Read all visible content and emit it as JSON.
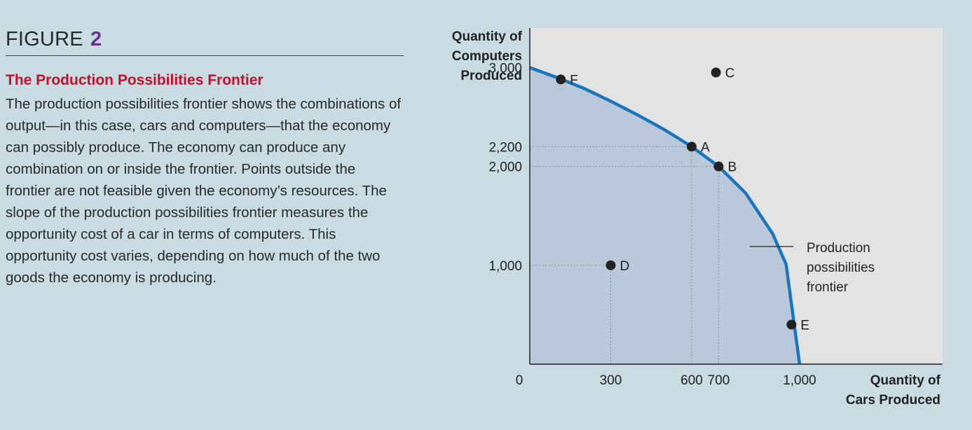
{
  "figure": {
    "label": "FIGURE",
    "number": "2",
    "title": "The Production Possibilities Frontier",
    "text": "The production possibilities frontier shows the combinations of output—in this case, cars and computers—that the economy can possibly produce. The economy can produce any combination on or inside the frontier. Points outside the frontier are not feasible given the economy’s resources. The slope of the production possibilities frontier measures the opportunity cost of a car in terms of computers. This opportunity cost varies, depending on how much of the two goods the economy is producing."
  },
  "chart_data": {
    "type": "line",
    "ylabel_lines": [
      "Quantity of",
      "Computers",
      "Produced"
    ],
    "xlabel_lines": [
      "Quantity of",
      "Cars Produced"
    ],
    "x_ticks": [
      {
        "value": 0,
        "label": "0"
      },
      {
        "value": 300,
        "label": "300"
      },
      {
        "value": 600,
        "label": "600"
      },
      {
        "value": 700,
        "label": "700"
      },
      {
        "value": 1000,
        "label": "1,000"
      }
    ],
    "y_ticks": [
      {
        "value": 1000,
        "label": "1,000"
      },
      {
        "value": 2000,
        "label": "2,000"
      },
      {
        "value": 2200,
        "label": "2,200"
      },
      {
        "value": 3000,
        "label": "3,000"
      }
    ],
    "xlim": [
      0,
      1530
    ],
    "ylim": [
      0,
      3400
    ],
    "series": [
      {
        "name": "Production possibilities frontier",
        "color": "#1a75bc",
        "fill": "#bac8dc",
        "points": [
          [
            0,
            3000
          ],
          [
            100,
            2900
          ],
          [
            200,
            2790
          ],
          [
            300,
            2660
          ],
          [
            400,
            2520
          ],
          [
            500,
            2370
          ],
          [
            600,
            2200
          ],
          [
            650,
            2100
          ],
          [
            700,
            2000
          ],
          [
            800,
            1730
          ],
          [
            900,
            1320
          ],
          [
            950,
            1010
          ],
          [
            1000,
            0
          ]
        ]
      }
    ],
    "points": [
      {
        "label": "F",
        "x": 115,
        "y": 2880
      },
      {
        "label": "C",
        "x": 690,
        "y": 2950
      },
      {
        "label": "A",
        "x": 600,
        "y": 2200
      },
      {
        "label": "B",
        "x": 700,
        "y": 2000
      },
      {
        "label": "D",
        "x": 300,
        "y": 1000
      },
      {
        "label": "E",
        "x": 970,
        "y": 400
      }
    ],
    "dotted_guides": [
      {
        "x": 600,
        "y": 2200
      },
      {
        "x": 700,
        "y": 2000
      },
      {
        "x": 300,
        "y": 1000
      }
    ],
    "annotation": {
      "lines": [
        "Production",
        "possibilities",
        "frontier"
      ]
    },
    "colors": {
      "plot_bg": "#e3e3e3",
      "page_bg": "#c9dbe3",
      "frontier": "#1a75bc",
      "point": "#222222"
    },
    "grid": false,
    "legend": "none"
  }
}
